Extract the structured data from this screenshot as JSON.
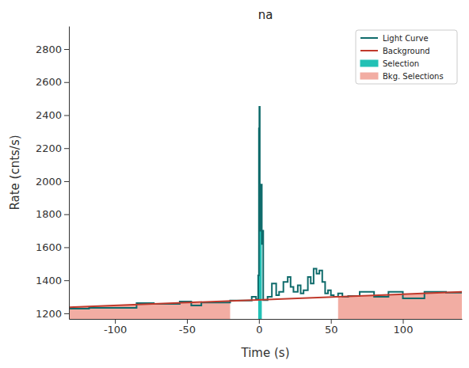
{
  "chart_data": {
    "type": "line",
    "title": "na",
    "x_label": "Time (s)",
    "y_label": "Rate (cnts/s)",
    "xlim": [
      -132,
      141
    ],
    "ylim": [
      1166,
      2939
    ],
    "xticks": [
      -100,
      -50,
      0,
      50,
      100
    ],
    "yticks": [
      1200,
      1400,
      1600,
      1800,
      2000,
      2200,
      2400,
      2600,
      2800
    ],
    "legend": "upper right",
    "series": [
      {
        "name": "Light Curve",
        "type": "line",
        "color": "#0f6b6b",
        "line_style": "step",
        "x": [
          -135,
          -118,
          -85,
          -73,
          -55,
          -47,
          -40,
          -20,
          -5,
          -2,
          -0.5,
          0,
          0.3,
          0.6,
          1,
          1.5,
          2,
          2.5,
          3,
          6,
          9,
          12,
          14,
          17,
          20,
          22,
          24,
          27,
          29,
          31,
          34,
          36,
          38,
          40,
          42,
          44,
          46,
          48,
          50,
          52,
          55,
          58,
          62,
          70,
          80,
          90,
          100,
          115,
          130,
          145
        ],
        "values": [
          1228,
          1233,
          1262,
          1257,
          1272,
          1248,
          1265,
          1278,
          1300,
          1285,
          1430,
          2320,
          2450,
          1900,
          1700,
          1980,
          1620,
          1700,
          1280,
          1300,
          1380,
          1310,
          1330,
          1390,
          1420,
          1360,
          1330,
          1370,
          1320,
          1340,
          1420,
          1380,
          1470,
          1440,
          1460,
          1390,
          1320,
          1340,
          1310,
          1300,
          1320,
          1300,
          1305,
          1330,
          1300,
          1330,
          1290,
          1330,
          1325,
          1325
        ]
      },
      {
        "name": "Background",
        "type": "line",
        "color": "#c0392b",
        "line_style": "solid",
        "x": [
          -132,
          141
        ],
        "values": [
          1237,
          1330
        ]
      },
      {
        "name": "Selection",
        "type": "area",
        "color": "#22c1b5",
        "line_style": "step",
        "x": [
          -0.5,
          0,
          0.3,
          0.6,
          1,
          1.5,
          2
        ],
        "values": [
          1430,
          2320,
          2450,
          1900,
          1700,
          1980,
          1980
        ]
      },
      {
        "name": "Bkg. Selections",
        "type": "area",
        "color": "#f2ada3",
        "line_style": "solid",
        "x": [
          -132,
          -20,
          18,
          55,
          141
        ],
        "values": [
          1237,
          1271,
          null,
          1298,
          1330
        ]
      }
    ]
  }
}
